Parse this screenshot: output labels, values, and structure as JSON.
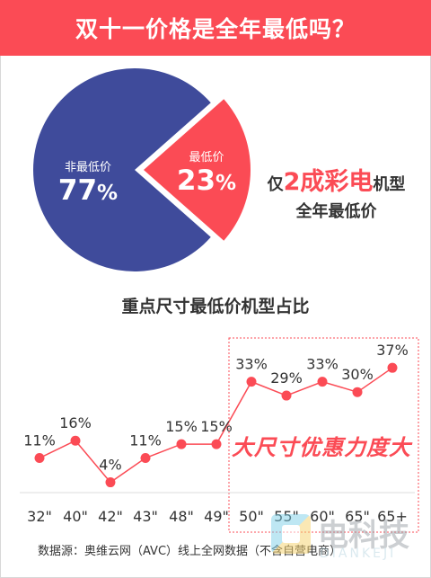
{
  "header": {
    "title": "双十一价格是全年最低吗？"
  },
  "chart_data": [
    {
      "type": "pie",
      "slices": [
        {
          "label": "非最低价",
          "value": 77,
          "display": "77",
          "unit": "%",
          "color": "#3f4b9b"
        },
        {
          "label": "最低价",
          "value": 23,
          "display": "23",
          "unit": "%",
          "color": "#fb4b55"
        }
      ]
    },
    {
      "type": "line",
      "title": "重点尺寸最低价机型占比",
      "categories": [
        "32\"",
        "40\"",
        "42\"",
        "43\"",
        "48\"",
        "49\"",
        "50\"",
        "55\"",
        "60\"",
        "65\"",
        "65+"
      ],
      "series": [
        {
          "values": [
            11,
            16,
            4,
            11,
            15,
            15,
            33,
            29,
            33,
            30,
            37
          ]
        }
      ],
      "value_labels": [
        "11%",
        "16%",
        "4%",
        "11%",
        "15%",
        "15%",
        "33%",
        "29%",
        "33%",
        "30%",
        "37%"
      ],
      "highlight_range": [
        "50\"",
        "65+"
      ],
      "highlight_label": "大尺寸优惠力度大",
      "color": "#fb4b55"
    }
  ],
  "callout": {
    "prefix": "仅",
    "highlight": "2成彩电",
    "suffix": "机型",
    "line2": "全年最低价"
  },
  "source": "数据源：奥维云网（AVC）线上全网数据（不含自营电商）",
  "brand": {
    "name": "电科技",
    "sub": "DIANKEJI"
  }
}
